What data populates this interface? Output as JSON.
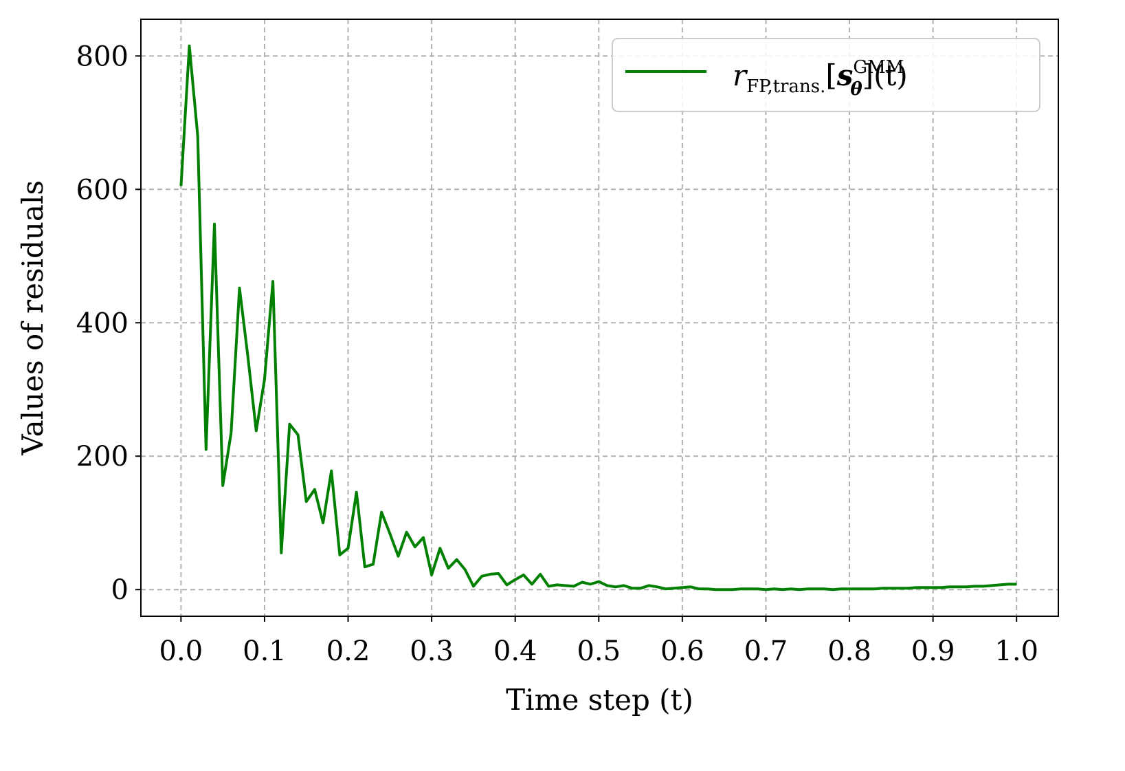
{
  "chart_data": {
    "type": "line",
    "xlabel": "Time step (t)",
    "ylabel": "Values of residuals",
    "xlim": [
      -0.048,
      1.05
    ],
    "ylim": [
      -40,
      855
    ],
    "xticks": [
      0.0,
      0.1,
      0.2,
      0.3,
      0.4,
      0.5,
      0.6,
      0.7,
      0.8,
      0.9,
      1.0
    ],
    "xtick_labels": [
      "0.0",
      "0.1",
      "0.2",
      "0.3",
      "0.4",
      "0.5",
      "0.6",
      "0.7",
      "0.8",
      "0.9",
      "1.0"
    ],
    "yticks": [
      0,
      200,
      400,
      600,
      800
    ],
    "ytick_labels": [
      "0",
      "200",
      "400",
      "600",
      "800"
    ],
    "grid": true,
    "legend_position": "top-right",
    "series": [
      {
        "name": "r_{FP,trans.}[s_θ^GMM](t)",
        "legend": {
          "symbol": "r",
          "subscript": "FP,trans.",
          "open_bracket": "[",
          "var": "s",
          "var_subscript": "θ",
          "var_superscript": "GMM",
          "close": "](t)"
        },
        "color": "#008000",
        "x": [
          0.0,
          0.01,
          0.02,
          0.03,
          0.04,
          0.05,
          0.06,
          0.07,
          0.08,
          0.09,
          0.1,
          0.11,
          0.12,
          0.13,
          0.14,
          0.15,
          0.16,
          0.17,
          0.18,
          0.19,
          0.2,
          0.21,
          0.22,
          0.23,
          0.24,
          0.25,
          0.26,
          0.27,
          0.28,
          0.29,
          0.3,
          0.31,
          0.32,
          0.33,
          0.34,
          0.35,
          0.36,
          0.37,
          0.38,
          0.39,
          0.4,
          0.41,
          0.42,
          0.43,
          0.44,
          0.45,
          0.46,
          0.47,
          0.48,
          0.49,
          0.5,
          0.51,
          0.52,
          0.53,
          0.54,
          0.55,
          0.56,
          0.57,
          0.58,
          0.59,
          0.6,
          0.61,
          0.62,
          0.63,
          0.64,
          0.65,
          0.66,
          0.67,
          0.68,
          0.69,
          0.7,
          0.71,
          0.72,
          0.73,
          0.74,
          0.75,
          0.76,
          0.77,
          0.78,
          0.79,
          0.8,
          0.81,
          0.82,
          0.83,
          0.84,
          0.85,
          0.86,
          0.87,
          0.88,
          0.89,
          0.9,
          0.91,
          0.92,
          0.93,
          0.94,
          0.95,
          0.96,
          0.97,
          0.98,
          0.99,
          1.0
        ],
        "values": [
          605,
          815,
          680,
          210,
          548,
          156,
          235,
          452,
          350,
          238,
          315,
          462,
          55,
          248,
          232,
          132,
          150,
          100,
          178,
          52,
          62,
          146,
          34,
          38,
          116,
          84,
          50,
          86,
          64,
          78,
          22,
          62,
          32,
          45,
          30,
          5,
          20,
          23,
          24,
          7,
          15,
          22,
          8,
          23,
          5,
          7,
          6,
          5,
          11,
          8,
          12,
          6,
          4,
          6,
          2,
          2,
          6,
          4,
          1,
          2,
          3,
          4,
          1,
          1,
          0,
          0,
          0,
          1,
          1,
          1,
          0,
          1,
          0,
          1,
          0,
          1,
          1,
          1,
          0,
          1,
          1,
          1,
          1,
          1,
          2,
          2,
          2,
          2,
          3,
          3,
          3,
          3,
          4,
          4,
          4,
          5,
          5,
          6,
          7,
          8,
          8
        ]
      }
    ]
  }
}
